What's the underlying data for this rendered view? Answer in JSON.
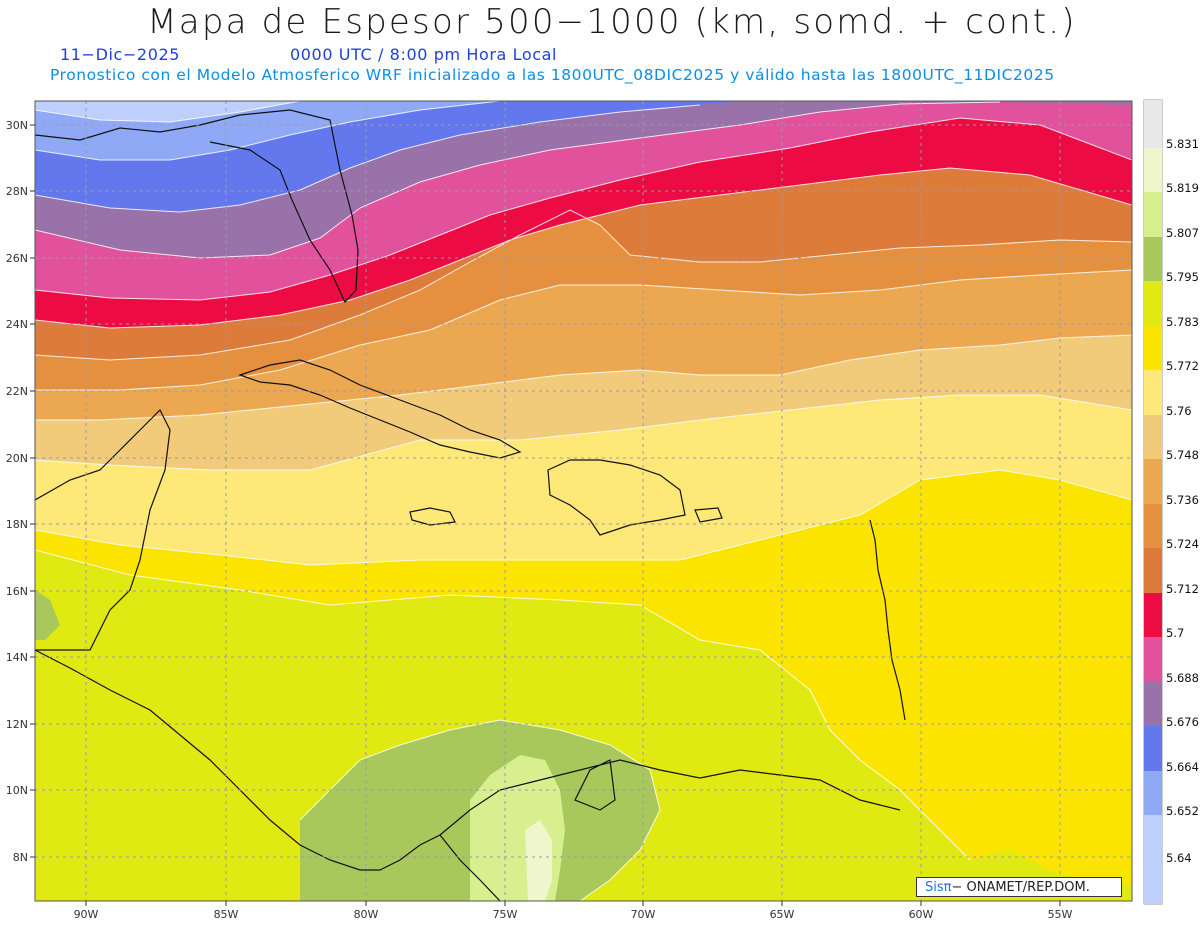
{
  "header": {
    "title": "Mapa de Espesor 500−1000 (km, somd. + cont.)",
    "date": "11−Dic−2025",
    "time": "0000 UTC / 8:00 pm Hora Local",
    "model_line": "Pronostico con el Modelo Atmosferico WRF inicializado a las 1800UTC_08DIC2025 y válido hasta las  1800UTC_11DIC2025"
  },
  "map": {
    "lon_ticks": [
      "90W",
      "85W",
      "80W",
      "75W",
      "70W",
      "65W",
      "60W",
      "55W"
    ],
    "lat_ticks": [
      "30N",
      "28N",
      "26N",
      "24N",
      "22N",
      "20N",
      "18N",
      "16N",
      "14N",
      "12N",
      "10N",
      "8N"
    ],
    "bands": [
      {
        "level": "5.64",
        "color": "#bfcffb"
      },
      {
        "level": "5.652",
        "color": "#8fa9f7"
      },
      {
        "level": "5.664",
        "color": "#6478ee"
      },
      {
        "level": "5.676",
        "color": "#9a72aa"
      },
      {
        "level": "5.688",
        "color": "#e2519c"
      },
      {
        "level": "5.7",
        "color": "#ec0c43"
      },
      {
        "level": "5.712",
        "color": "#dd7b3b"
      },
      {
        "level": "5.724",
        "color": "#e5903e"
      },
      {
        "level": "5.736",
        "color": "#eca851"
      },
      {
        "level": "5.748",
        "color": "#f2cb7a"
      },
      {
        "level": "5.76",
        "color": "#fde878"
      },
      {
        "level": "5.772",
        "color": "#fbe500"
      },
      {
        "level": "5.783",
        "color": "#e1e913"
      },
      {
        "level": "5.795",
        "color": "#a9c85b"
      },
      {
        "level": "5.807",
        "color": "#d7ef8f"
      },
      {
        "level": "5.819",
        "color": "#eff6cc"
      },
      {
        "level": "5.831",
        "color": "#e8e8e8"
      }
    ]
  },
  "colorbar": {
    "labels": [
      "5.831",
      "5.819",
      "5.807",
      "5.795",
      "5.783",
      "5.772",
      "5.76",
      "5.748",
      "5.736",
      "5.724",
      "5.712",
      "5.7",
      "5.688",
      "5.676",
      "5.664",
      "5.652",
      "5.64"
    ],
    "colors": [
      "#e8e8e8",
      "#eff6cc",
      "#d7ef8f",
      "#a9c85b",
      "#e1e913",
      "#fbe500",
      "#fde878",
      "#f2cb7a",
      "#eca851",
      "#e5903e",
      "#dd7b3b",
      "#ec0c43",
      "#e2519c",
      "#9a72aa",
      "#6478ee",
      "#8fa9f7",
      "#bfcffb"
    ]
  },
  "credit": {
    "sis": "Sisπ",
    "org": "− ONAMET/REP.DOM."
  }
}
